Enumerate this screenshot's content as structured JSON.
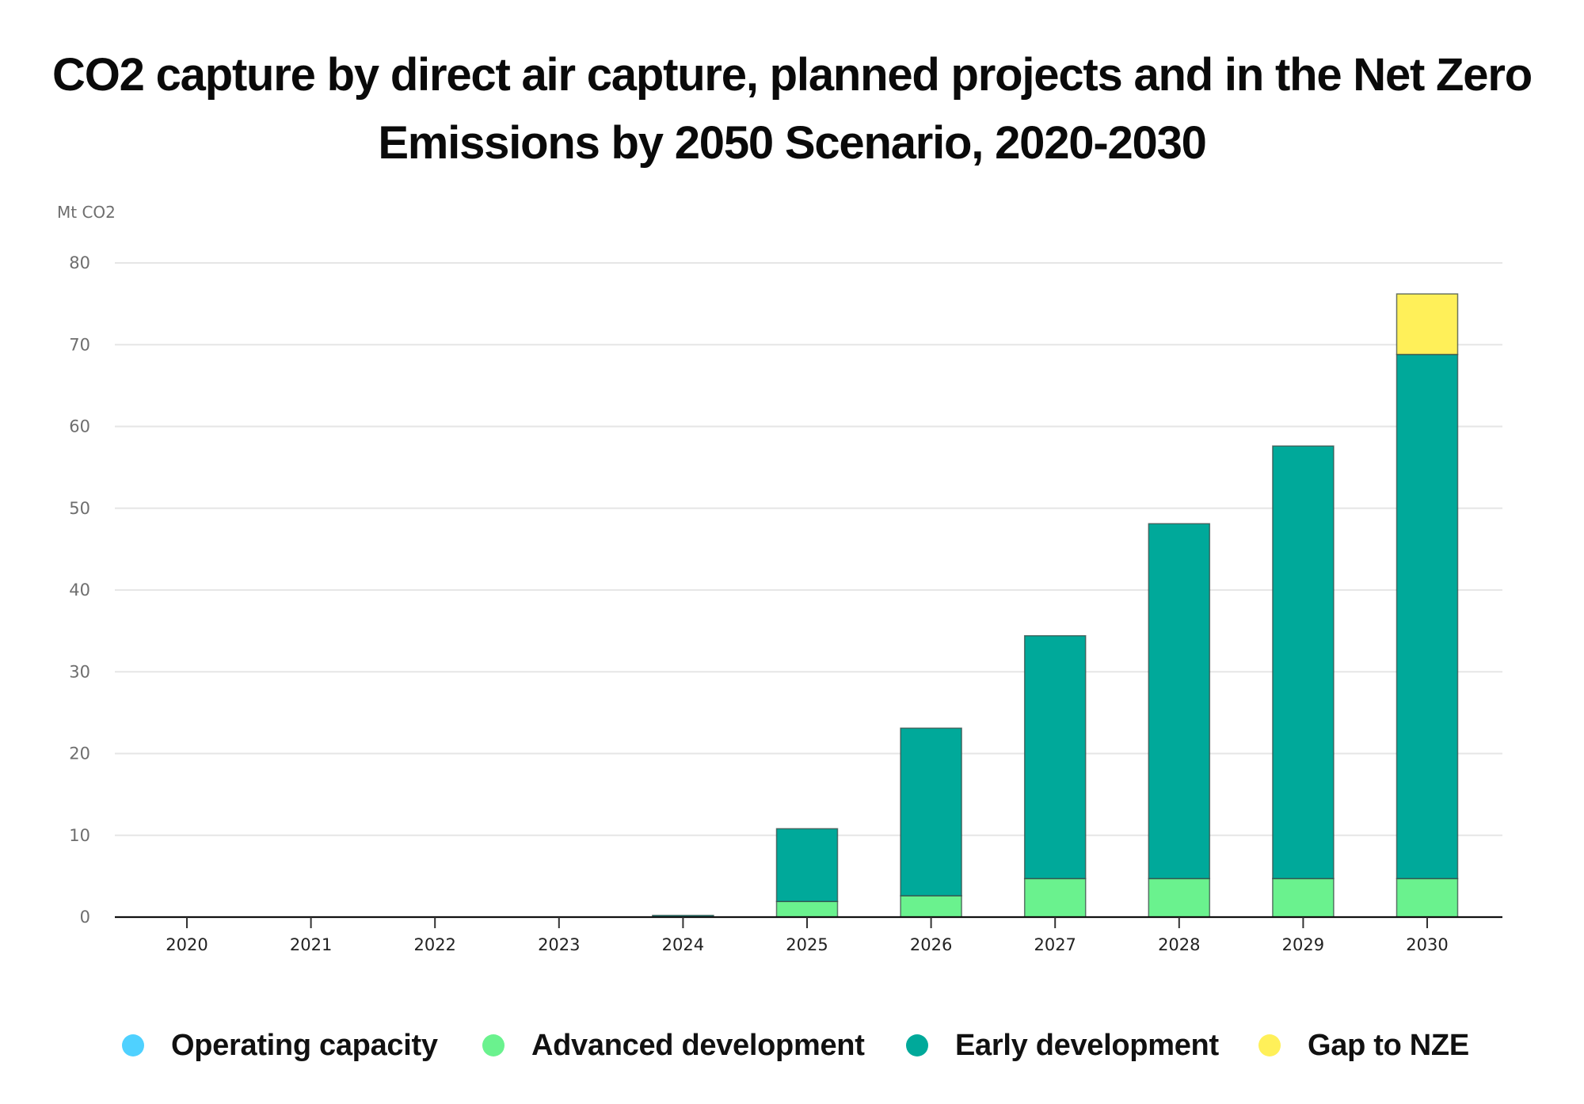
{
  "chart_data": {
    "type": "bar",
    "stacked": true,
    "title": "CO2 capture by direct air capture, planned projects and in the Net Zero Emissions by 2050 Scenario, 2020-2030",
    "xlabel": "",
    "ylabel": "Mt CO2",
    "ylim": [
      0,
      80
    ],
    "yticks": [
      0,
      10,
      20,
      30,
      40,
      50,
      60,
      70,
      80
    ],
    "grid": true,
    "legend_position": "bottom",
    "categories": [
      "2020",
      "2021",
      "2022",
      "2023",
      "2024",
      "2025",
      "2026",
      "2027",
      "2028",
      "2029",
      "2030"
    ],
    "series": [
      {
        "name": "Operating capacity",
        "color": "#4fd1ff",
        "values": [
          0.01,
          0.01,
          0.01,
          0.01,
          0.01,
          0.01,
          0.01,
          0.01,
          0.01,
          0.01,
          0.01
        ]
      },
      {
        "name": "Advanced development",
        "color": "#6af28e",
        "values": [
          0,
          0,
          0,
          0,
          0,
          1.9,
          2.6,
          4.7,
          4.7,
          4.7,
          4.7
        ]
      },
      {
        "name": "Early development",
        "color": "#00a99a",
        "values": [
          0,
          0,
          0,
          0,
          0.2,
          8.9,
          20.5,
          29.7,
          43.4,
          52.9,
          64.1
        ]
      },
      {
        "name": "Gap to NZE",
        "color": "#fff059",
        "values": [
          0,
          0,
          0,
          0,
          0,
          0,
          0,
          0,
          0,
          0,
          7.4
        ]
      }
    ]
  }
}
